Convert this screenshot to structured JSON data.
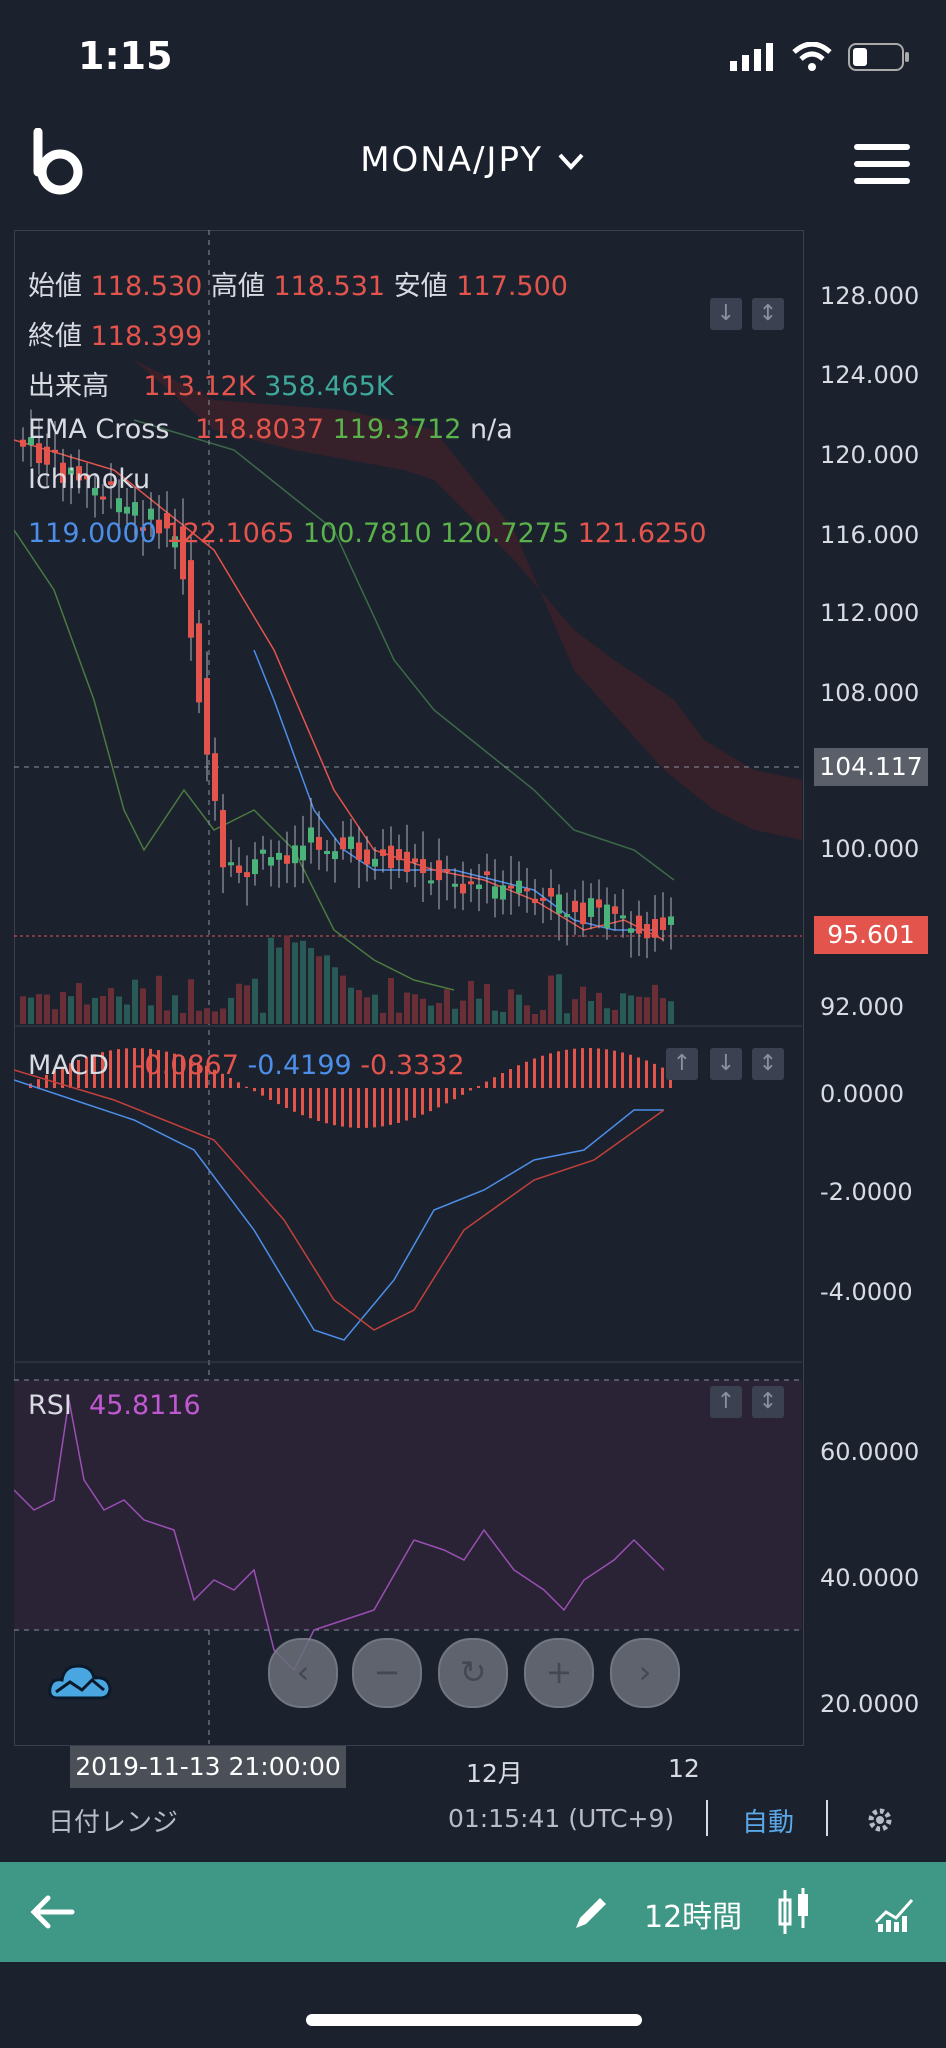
{
  "status_bar": {
    "time": "1:15"
  },
  "header": {
    "pair": "MONA/JPY"
  },
  "ohlc": {
    "open_label": "始値",
    "open": "118.530",
    "high_label": "高値",
    "high": "118.531",
    "low_label": "安値",
    "low": "117.500",
    "close_label": "終値",
    "close": "118.399"
  },
  "volume": {
    "label": "出来高",
    "v1": "113.12K",
    "v2": "358.465K"
  },
  "ema": {
    "label": "EMA Cross",
    "v1": "118.8037",
    "v2": "119.3712",
    "v3": "n/a"
  },
  "ichimoku": {
    "label": "Ichimoku",
    "v1": "119.0000",
    "v2": "122.1065",
    "v3": "100.7810",
    "v4": "120.7275",
    "v5": "121.6250"
  },
  "price_axis": [
    "128.000",
    "124.000",
    "120.000",
    "116.000",
    "112.000",
    "108.000",
    "100.000",
    "92.000"
  ],
  "price_tags": {
    "crosshair": "104.117",
    "last": "95.601"
  },
  "macd": {
    "label": "MACD",
    "v1": "-0.0867",
    "v2": "-0.4199",
    "v3": "-0.3332",
    "axis": [
      "0.0000",
      "-2.0000",
      "-4.0000"
    ]
  },
  "rsi": {
    "label": "RSI",
    "value": "45.8116",
    "axis": [
      "60.0000",
      "40.0000",
      "20.0000"
    ]
  },
  "time_axis": {
    "crosshair": "2019-11-13 21:00:00",
    "t1": "12月",
    "t2": "12"
  },
  "bottom_toolbar": {
    "date_range": "日付レンジ",
    "clock": "01:15:41",
    "tz": "(UTC+9)",
    "auto": "自動"
  },
  "footer": {
    "interval": "12時間"
  },
  "colors": {
    "up": "#4bb37a",
    "down": "#e2544c",
    "accent": "#3f9785",
    "macd_line": "#4c8ee8",
    "signal_line": "#e2544c",
    "rsi_line": "#c059d1"
  },
  "icons": [
    "back-arrow-icon",
    "pencil-icon",
    "candlestick-icon",
    "indicator-icon",
    "gear-icon",
    "cloud-icon",
    "chevron-down-icon",
    "menu-icon"
  ]
}
